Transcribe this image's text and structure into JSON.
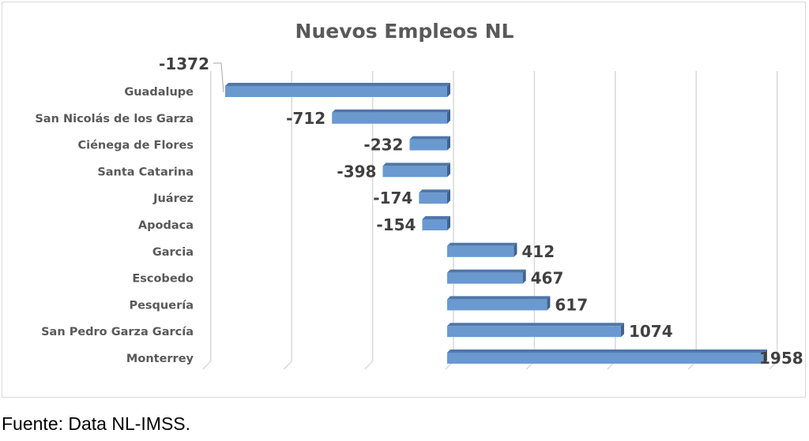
{
  "chart_data": {
    "type": "bar",
    "orientation": "horizontal",
    "style": "3d",
    "title": "Nuevos Empleos NL",
    "xlabel": "",
    "ylabel": "",
    "xlim": [
      -1500,
      2000
    ],
    "grid_step": 500,
    "grid": true,
    "legend": "none",
    "bar_color": "#6a99d0",
    "categories": [
      "Guadalupe",
      "San Nicolás de los Garza",
      "Ciénega de Flores",
      "Santa Catarina",
      "Juárez",
      "Apodaca",
      "Garcia",
      "Escobedo",
      "Pesquería",
      "San Pedro Garza García",
      "Monterrey"
    ],
    "values": [
      -1372,
      -712,
      -232,
      -398,
      -174,
      -154,
      412,
      467,
      617,
      1074,
      1958
    ]
  },
  "caption": "Fuente: Data NL-IMSS."
}
